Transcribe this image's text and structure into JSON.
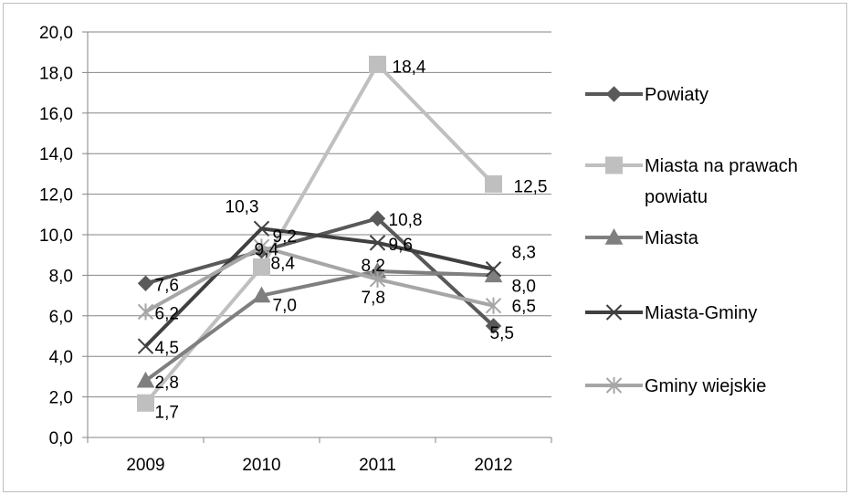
{
  "chart_data": {
    "type": "line",
    "categories": [
      "2009",
      "2010",
      "2011",
      "2012"
    ],
    "ylim": [
      0,
      20
    ],
    "ytick_labels": [
      "0,0",
      "2,0",
      "4,0",
      "6,0",
      "8,0",
      "10,0",
      "12,0",
      "14,0",
      "16,0",
      "18,0",
      "20,0"
    ],
    "grid": true,
    "legend_position": "right",
    "series": [
      {
        "name": "Powiaty",
        "values": [
          7.6,
          9.2,
          10.8,
          5.5
        ],
        "labels": [
          "7,6",
          "9,2",
          "10,8",
          "5,5"
        ],
        "color": "#595959",
        "marker": "diamond"
      },
      {
        "name": "Miasta na prawach powiatu",
        "values": [
          1.7,
          8.4,
          18.4,
          12.5
        ],
        "labels": [
          "1,7",
          "8,4",
          "18,4",
          "12,5"
        ],
        "color": "#bfbfbf",
        "marker": "square"
      },
      {
        "name": "Miasta",
        "values": [
          2.8,
          7.0,
          8.2,
          8.0
        ],
        "labels": [
          "2,8",
          "7,0",
          "8,2",
          "8,0"
        ],
        "color": "#7f7f7f",
        "marker": "triangle"
      },
      {
        "name": "Miasta-Gminy",
        "values": [
          4.5,
          10.3,
          9.6,
          8.3
        ],
        "labels": [
          "4,5",
          "10,3",
          "9,6",
          "8,3"
        ],
        "color": "#404040",
        "marker": "x"
      },
      {
        "name": "Gminy wiejskie",
        "values": [
          6.2,
          9.4,
          7.8,
          6.5
        ],
        "labels": [
          "6,2",
          "9,4",
          "7,8",
          "6,5"
        ],
        "color": "#a6a6a6",
        "marker": "star"
      }
    ]
  },
  "legend": {
    "items": [
      {
        "lines": [
          "Powiaty"
        ]
      },
      {
        "lines": [
          "Miasta na prawach",
          "powiatu"
        ]
      },
      {
        "lines": [
          "Miasta"
        ]
      },
      {
        "lines": [
          "Miasta-Gminy"
        ]
      },
      {
        "lines": [
          "Gminy wiejskie"
        ]
      }
    ]
  }
}
